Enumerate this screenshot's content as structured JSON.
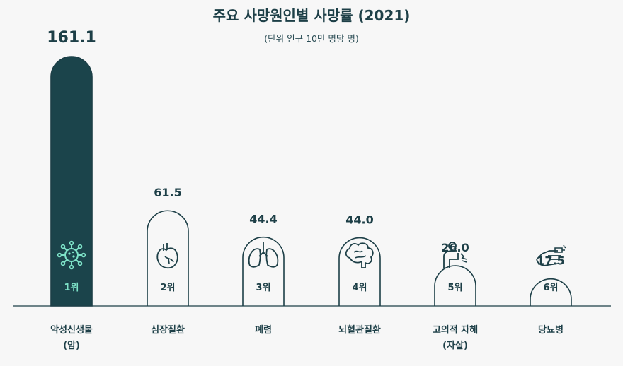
{
  "title": "주요 사망원인별 사망률 (2021)",
  "subtitle": "(단위 인구 10만 명당 명)",
  "colors": {
    "highlight_fill": "#1b444b",
    "stroke": "#1d3f47",
    "highlight_icon": "#7ee3c8",
    "background": "#f7f7f7",
    "text": "#1d3f47"
  },
  "chart_data": {
    "type": "bar",
    "categories": [
      "악성신생물\n(암)",
      "심장질환",
      "폐렴",
      "뇌혈관질환",
      "고의적 자해\n(자살)",
      "당뇨병"
    ],
    "values": [
      161.1,
      61.5,
      44.4,
      44.0,
      26.0,
      17.5
    ],
    "value_labels": [
      "161.1",
      "61.5",
      "44.4",
      "44.0",
      "26.0",
      "17.5"
    ],
    "ranks": [
      "1위",
      "2위",
      "3위",
      "4위",
      "5위",
      "6위"
    ],
    "icons": [
      "virus-icon",
      "heart-icon",
      "lungs-icon",
      "brain-icon",
      "self-harm-icon",
      "hand-injection-icon"
    ],
    "highlighted_index": 0,
    "ylim": [
      0,
      161.1
    ],
    "xlabel": "",
    "ylabel": ""
  }
}
